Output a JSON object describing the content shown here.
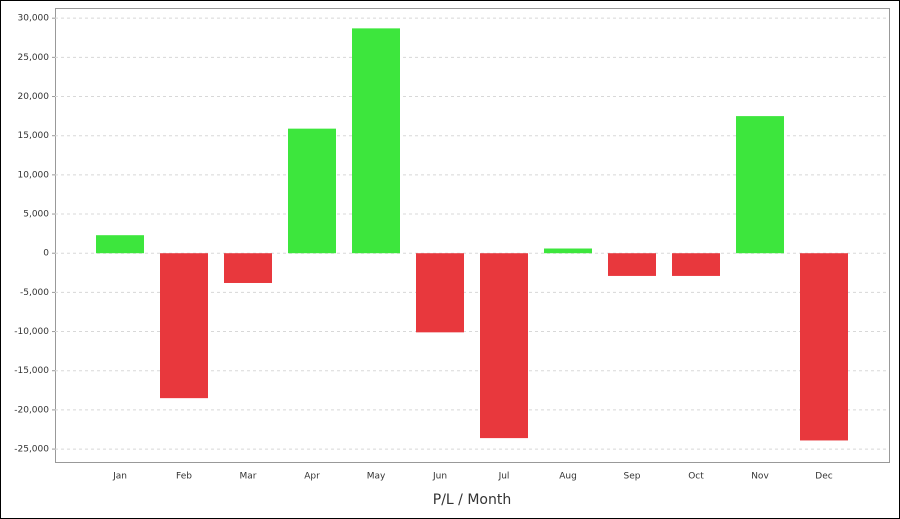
{
  "chart_data": {
    "type": "bar",
    "x_label": "P/L / Month",
    "categories": [
      "Jan",
      "Feb",
      "Mar",
      "Apr",
      "May",
      "Jun",
      "Jul",
      "Aug",
      "Sep",
      "Oct",
      "Nov",
      "Dec"
    ],
    "values": [
      2300,
      -18500,
      -3800,
      15900,
      28700,
      -10100,
      -23600,
      600,
      -2900,
      -2900,
      17500,
      -23900
    ],
    "positive_color": "#3de63d",
    "negative_color": "#e8383d",
    "ylim": [
      -26650,
      31300
    ],
    "yticks": [
      {
        "value": 30000,
        "label": "30,000"
      },
      {
        "value": 25000,
        "label": "25,000"
      },
      {
        "value": 20000,
        "label": "20,000"
      },
      {
        "value": 15000,
        "label": "15,000"
      },
      {
        "value": 10000,
        "label": "10,000"
      },
      {
        "value": 5000,
        "label": "5,000"
      },
      0,
      {
        "value": -5000,
        "label": "-5,000"
      },
      {
        "value": -10000,
        "label": "-10,000"
      },
      {
        "value": -15000,
        "label": "-15,000"
      },
      {
        "value": -20000,
        "label": "-20,000"
      },
      {
        "value": -25000,
        "label": "-25,000"
      }
    ],
    "grid": true
  }
}
